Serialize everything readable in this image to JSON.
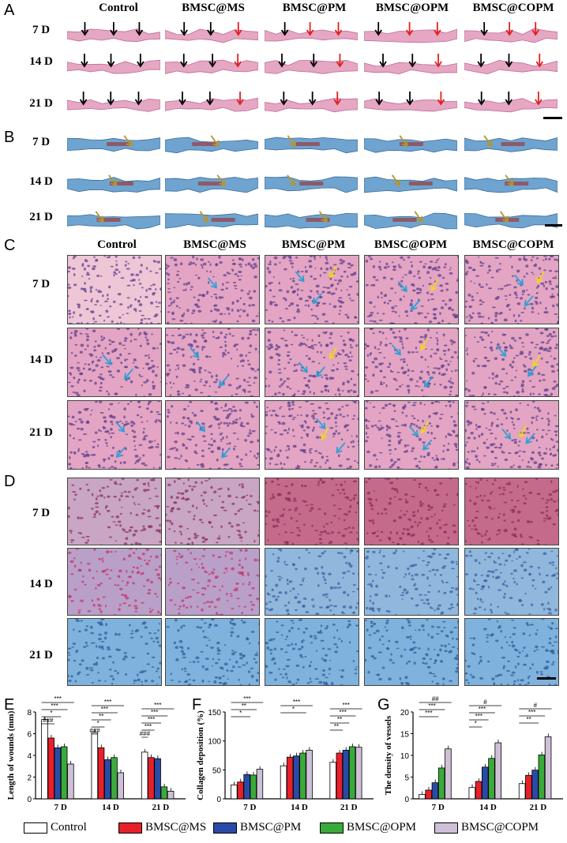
{
  "panels": {
    "A": "A",
    "B": "B",
    "C": "C",
    "D": "D",
    "E": "E",
    "F": "F",
    "G": "G"
  },
  "groups": [
    "Control",
    "BMSC@MS",
    "BMSC@PM",
    "BMSC@OPM",
    "BMSC@COPM"
  ],
  "timepoints": [
    "7 D",
    "14 D",
    "21 D"
  ],
  "colors": {
    "Control": "#ffffff",
    "BMSC@MS": "#e8202a",
    "BMSC@PM": "#2a4aa8",
    "BMSC@OPM": "#3aaa3a",
    "BMSC@COPM": "#cfc0d8",
    "he_pink": "#e5a7c2",
    "masson_blue": "#6fa3d0",
    "arrow_black": "#000000",
    "arrow_red": "#e0201f",
    "arrow_gold": "#b8962a",
    "arrow_cyan": "#2aa0d6",
    "arrow_yellow": "#f2d520"
  },
  "legend": [
    "Control",
    "BMSC@MS",
    "BMSC@PM",
    "BMSC@OPM",
    "BMSC@COPM"
  ],
  "chart_data": [
    {
      "type": "bar",
      "title": "",
      "ylabel": "Length of wounds (mm)",
      "xlabel": "",
      "categories": [
        "7 D",
        "14 D",
        "21 D"
      ],
      "ylim": [
        0,
        8
      ],
      "yticks": [
        0,
        2,
        4,
        6,
        8
      ],
      "series": [
        {
          "name": "Control",
          "values": [
            7.3,
            6.1,
            4.3
          ]
        },
        {
          "name": "BMSC@MS",
          "values": [
            5.6,
            4.7,
            3.8
          ]
        },
        {
          "name": "BMSC@PM",
          "values": [
            4.7,
            3.6,
            3.7
          ]
        },
        {
          "name": "BMSC@OPM",
          "values": [
            4.8,
            3.8,
            1.1
          ]
        },
        {
          "name": "BMSC@COPM",
          "values": [
            3.2,
            2.4,
            0.7
          ]
        }
      ],
      "annotations": [
        [
          "***",
          "***",
          "*",
          "###"
        ],
        [
          "***",
          "***",
          "**",
          "*",
          "###"
        ],
        [
          "***",
          "***",
          "***",
          "***",
          "###"
        ]
      ]
    },
    {
      "type": "bar",
      "title": "",
      "ylabel": "Collagen deposition (%)",
      "xlabel": "",
      "categories": [
        "7 D",
        "14 D",
        "21 D"
      ],
      "ylim": [
        0,
        150
      ],
      "yticks": [
        0,
        50,
        100,
        150
      ],
      "series": [
        {
          "name": "Control",
          "values": [
            24,
            57,
            63
          ]
        },
        {
          "name": "BMSC@MS",
          "values": [
            29,
            72,
            79
          ]
        },
        {
          "name": "BMSC@PM",
          "values": [
            42,
            74,
            84
          ]
        },
        {
          "name": "BMSC@OPM",
          "values": [
            41,
            79,
            90
          ]
        },
        {
          "name": "BMSC@COPM",
          "values": [
            51,
            84,
            89
          ]
        }
      ],
      "annotations": [
        [
          "***",
          "**",
          "*"
        ],
        [
          "***",
          "*"
        ],
        [
          "***",
          "***",
          "**",
          "**"
        ]
      ]
    },
    {
      "type": "bar",
      "title": "",
      "ylabel": "The density of vessels",
      "xlabel": "",
      "categories": [
        "7 D",
        "14 D",
        "21 D"
      ],
      "ylim": [
        0,
        20
      ],
      "yticks": [
        0,
        5,
        10,
        15,
        20
      ],
      "series": [
        {
          "name": "Control",
          "values": [
            1.0,
            2.6,
            3.5
          ]
        },
        {
          "name": "BMSC@MS",
          "values": [
            2.0,
            4.0,
            5.4
          ]
        },
        {
          "name": "BMSC@PM",
          "values": [
            3.7,
            7.3,
            6.6
          ]
        },
        {
          "name": "BMSC@OPM",
          "values": [
            7.1,
            9.3,
            10.1
          ]
        },
        {
          "name": "BMSC@COPM",
          "values": [
            11.5,
            12.9,
            14.3
          ]
        }
      ],
      "annotations": [
        [
          "##",
          "***",
          "***"
        ],
        [
          "#",
          "***",
          "***",
          "*"
        ],
        [
          "#",
          "***",
          "**"
        ]
      ]
    }
  ]
}
